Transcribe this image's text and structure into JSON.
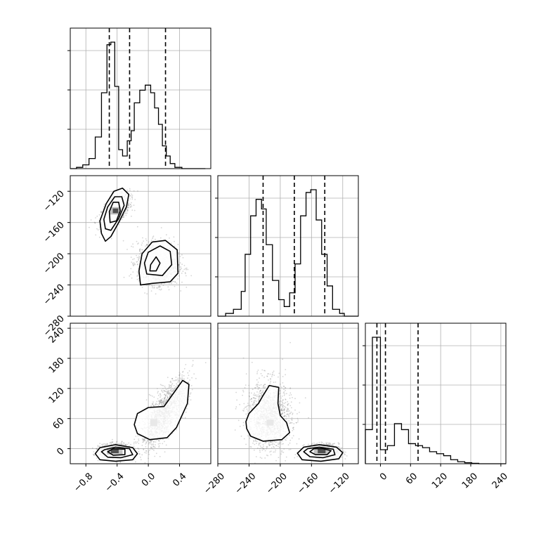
{
  "chart_data": {
    "type": "corner",
    "colors": {
      "line": "#000000",
      "points": "#888888",
      "grid": "#b0b0b0",
      "fill": "#000000"
    },
    "grid": true,
    "params": [
      {
        "ticks": [
          "−0.8",
          "−0.4",
          "0.0",
          "0.4"
        ],
        "tick_values": [
          -0.8,
          -0.4,
          0.0,
          0.4
        ],
        "range": [
          -1.0,
          0.8
        ],
        "quantiles": [
          -0.5,
          -0.24,
          0.22
        ],
        "hist_edges": [
          -1.0,
          -0.92,
          -0.84,
          -0.76,
          -0.68,
          -0.6,
          -0.53,
          -0.48,
          -0.43,
          -0.38,
          -0.33,
          -0.27,
          -0.22,
          -0.18,
          -0.11,
          -0.04,
          0.03,
          0.08,
          0.13,
          0.18,
          0.23,
          0.28,
          0.34,
          0.43,
          0.53,
          0.63,
          0.73
        ],
        "hist_counts": [
          0,
          1,
          3,
          8,
          25,
          60,
          98,
          100,
          65,
          15,
          10,
          22,
          30,
          52,
          62,
          66,
          60,
          48,
          35,
          18,
          10,
          4,
          1,
          0,
          0,
          0
        ]
      },
      {
        "ticks": [
          "−280",
          "−240",
          "−200",
          "−160",
          "−120"
        ],
        "tick_values": [
          -280,
          -240,
          -200,
          -160,
          -120
        ],
        "range": [
          -280,
          -100
        ],
        "quantiles": [
          -222,
          -182,
          -143
        ],
        "hist_edges": [
          -280,
          -270,
          -260,
          -250,
          -245,
          -238,
          -231,
          -224,
          -218,
          -210,
          -202,
          -195,
          -188,
          -181,
          -174,
          -167,
          -161,
          -154,
          -147,
          -140,
          -133,
          -124,
          -118,
          -110,
          -100
        ],
        "hist_counts": [
          0,
          2,
          5,
          18,
          45,
          73,
          85,
          78,
          52,
          26,
          12,
          7,
          17,
          38,
          73,
          90,
          92,
          70,
          45,
          22,
          5,
          2,
          0,
          0
        ]
      },
      {
        "ticks": [
          "0",
          "60",
          "120",
          "180",
          "240"
        ],
        "tick_values": [
          0,
          60,
          120,
          180,
          240
        ],
        "range": [
          -30,
          250
        ],
        "quantiles": [
          -7,
          10,
          75
        ],
        "hist_edges": [
          -30,
          -16,
          0,
          14,
          28,
          42,
          56,
          70,
          84,
          98,
          112,
          126,
          140,
          154,
          168,
          182,
          196,
          210,
          230,
          250
        ],
        "hist_counts": [
          17,
          63,
          7,
          9,
          20,
          17,
          10,
          9,
          8,
          6,
          5,
          4,
          2,
          1,
          0.5,
          0.2,
          0,
          0,
          0
        ]
      }
    ],
    "pairs": [
      {
        "x": 0,
        "y": 1,
        "clusters": [
          {
            "center": [
              -0.42,
              -145
            ],
            "sd": [
              0.09,
              10
            ],
            "rho": 0.6,
            "n": 1100
          },
          {
            "center": [
              0.12,
              -213
            ],
            "sd": [
              0.13,
              13
            ],
            "rho": -0.05,
            "n": 1300
          }
        ],
        "contour_levels": [
          [
            [
              -0.6,
              -174
            ],
            [
              -0.55,
              -184
            ],
            [
              -0.48,
              -178
            ],
            [
              -0.38,
              -160
            ],
            [
              -0.28,
              -140
            ],
            [
              -0.25,
              -124
            ],
            [
              -0.33,
              -116
            ],
            [
              -0.44,
              -120
            ],
            [
              -0.54,
              -136
            ],
            [
              -0.62,
              -158
            ]
          ],
          [
            [
              -0.55,
              -168
            ],
            [
              -0.48,
              -170
            ],
            [
              -0.38,
              -155
            ],
            [
              -0.31,
              -138
            ],
            [
              -0.34,
              -127
            ],
            [
              -0.43,
              -127
            ],
            [
              -0.52,
              -140
            ],
            [
              -0.57,
              -156
            ]
          ],
          [
            [
              -0.49,
              -160
            ],
            [
              -0.41,
              -158
            ],
            [
              -0.36,
              -145
            ],
            [
              -0.38,
              -134
            ],
            [
              -0.45,
              -134
            ],
            [
              -0.5,
              -146
            ]
          ],
          [
            [
              -0.1,
              -240
            ],
            [
              0.05,
              -238
            ],
            [
              0.28,
              -236
            ],
            [
              0.38,
              -225
            ],
            [
              0.37,
              -195
            ],
            [
              0.22,
              -183
            ],
            [
              0.05,
              -185
            ],
            [
              -0.08,
              -200
            ],
            [
              -0.12,
              -222
            ]
          ],
          [
            [
              -0.02,
              -226
            ],
            [
              0.18,
              -228
            ],
            [
              0.3,
              -214
            ],
            [
              0.28,
              -197
            ],
            [
              0.15,
              -190
            ],
            [
              0.0,
              -198
            ],
            [
              -0.05,
              -212
            ]
          ],
          [
            [
              0.02,
              -222
            ],
            [
              0.1,
              -222
            ],
            [
              0.15,
              -212
            ],
            [
              0.1,
              -204
            ],
            [
              0.03,
              -214
            ]
          ]
        ],
        "dense": [
          {
            "at": [
              -0.42,
              -145
            ],
            "w": 0.07,
            "h": 6
          }
        ]
      },
      {
        "x": 0,
        "y": 2,
        "clusters": [
          {
            "center": [
              -0.42,
              -5
            ],
            "sd": [
              0.1,
              7
            ],
            "rho": 0.0,
            "n": 1100
          },
          {
            "center": [
              0.2,
              70
            ],
            "sd": [
              0.15,
              35
            ],
            "rho": 0.75,
            "n": 1300
          }
        ],
        "contour_levels": [
          [
            [
              -0.68,
              -10
            ],
            [
              -0.62,
              -22
            ],
            [
              -0.42,
              -25
            ],
            [
              -0.2,
              -22
            ],
            [
              -0.14,
              -10
            ],
            [
              -0.2,
              2
            ],
            [
              -0.42,
              8
            ],
            [
              -0.62,
              2
            ]
          ],
          [
            [
              -0.6,
              -6
            ],
            [
              -0.52,
              -17
            ],
            [
              -0.35,
              -18
            ],
            [
              -0.2,
              -12
            ],
            [
              -0.24,
              0
            ],
            [
              -0.42,
              3
            ],
            [
              -0.56,
              -2
            ]
          ],
          [
            [
              -0.52,
              -6
            ],
            [
              -0.45,
              -13
            ],
            [
              -0.3,
              -12
            ],
            [
              -0.3,
              -1
            ],
            [
              -0.45,
              0
            ]
          ],
          [
            [
              -0.18,
              48
            ],
            [
              -0.14,
              30
            ],
            [
              0.02,
              18
            ],
            [
              0.24,
              22
            ],
            [
              0.36,
              42
            ],
            [
              0.5,
              90
            ],
            [
              0.52,
              128
            ],
            [
              0.44,
              136
            ],
            [
              0.32,
              110
            ],
            [
              0.2,
              84
            ],
            [
              0.0,
              82
            ],
            [
              -0.14,
              70
            ]
          ]
        ],
        "dense": [
          {
            "at": [
              -0.43,
              -5
            ],
            "w": 0.1,
            "h": 8
          },
          {
            "at": [
              0.07,
              52
            ],
            "w": 0.09,
            "h": 14,
            "light": true
          }
        ]
      },
      {
        "x": 1,
        "y": 2,
        "clusters": [
          {
            "center": [
              -214,
              65
            ],
            "sd": [
              14,
              35
            ],
            "rho": -0.05,
            "n": 1300
          },
          {
            "center": [
              -145,
              -5
            ],
            "sd": [
              10,
              7
            ],
            "rho": 0.0,
            "n": 1100
          }
        ],
        "contour_levels": [
          [
            [
              -243,
              40
            ],
            [
              -238,
              25
            ],
            [
              -222,
              15
            ],
            [
              -198,
              18
            ],
            [
              -188,
              32
            ],
            [
              -192,
              52
            ],
            [
              -200,
              66
            ],
            [
              -203,
              90
            ],
            [
              -202,
              122
            ],
            [
              -214,
              126
            ],
            [
              -222,
              106
            ],
            [
              -228,
              90
            ],
            [
              -240,
              70
            ],
            [
              -244,
              54
            ]
          ],
          [
            [
              -178,
              -9
            ],
            [
              -172,
              -22
            ],
            [
              -148,
              -25
            ],
            [
              -125,
              -20
            ],
            [
              -120,
              -8
            ],
            [
              -128,
              3
            ],
            [
              -150,
              8
            ],
            [
              -170,
              3
            ]
          ],
          [
            [
              -170,
              -6
            ],
            [
              -162,
              -16
            ],
            [
              -145,
              -18
            ],
            [
              -130,
              -12
            ],
            [
              -132,
              -1
            ],
            [
              -150,
              3
            ],
            [
              -165,
              0
            ]
          ],
          [
            [
              -162,
              -6
            ],
            [
              -155,
              -12
            ],
            [
              -140,
              -12
            ],
            [
              -135,
              -4
            ],
            [
              -145,
              0
            ],
            [
              -157,
              0
            ]
          ]
        ],
        "dense": [
          {
            "at": [
              -147,
              -5
            ],
            "w": 10,
            "h": 8
          },
          {
            "at": [
              -213,
              52
            ],
            "w": 9,
            "h": 12,
            "light": true
          }
        ]
      }
    ]
  }
}
